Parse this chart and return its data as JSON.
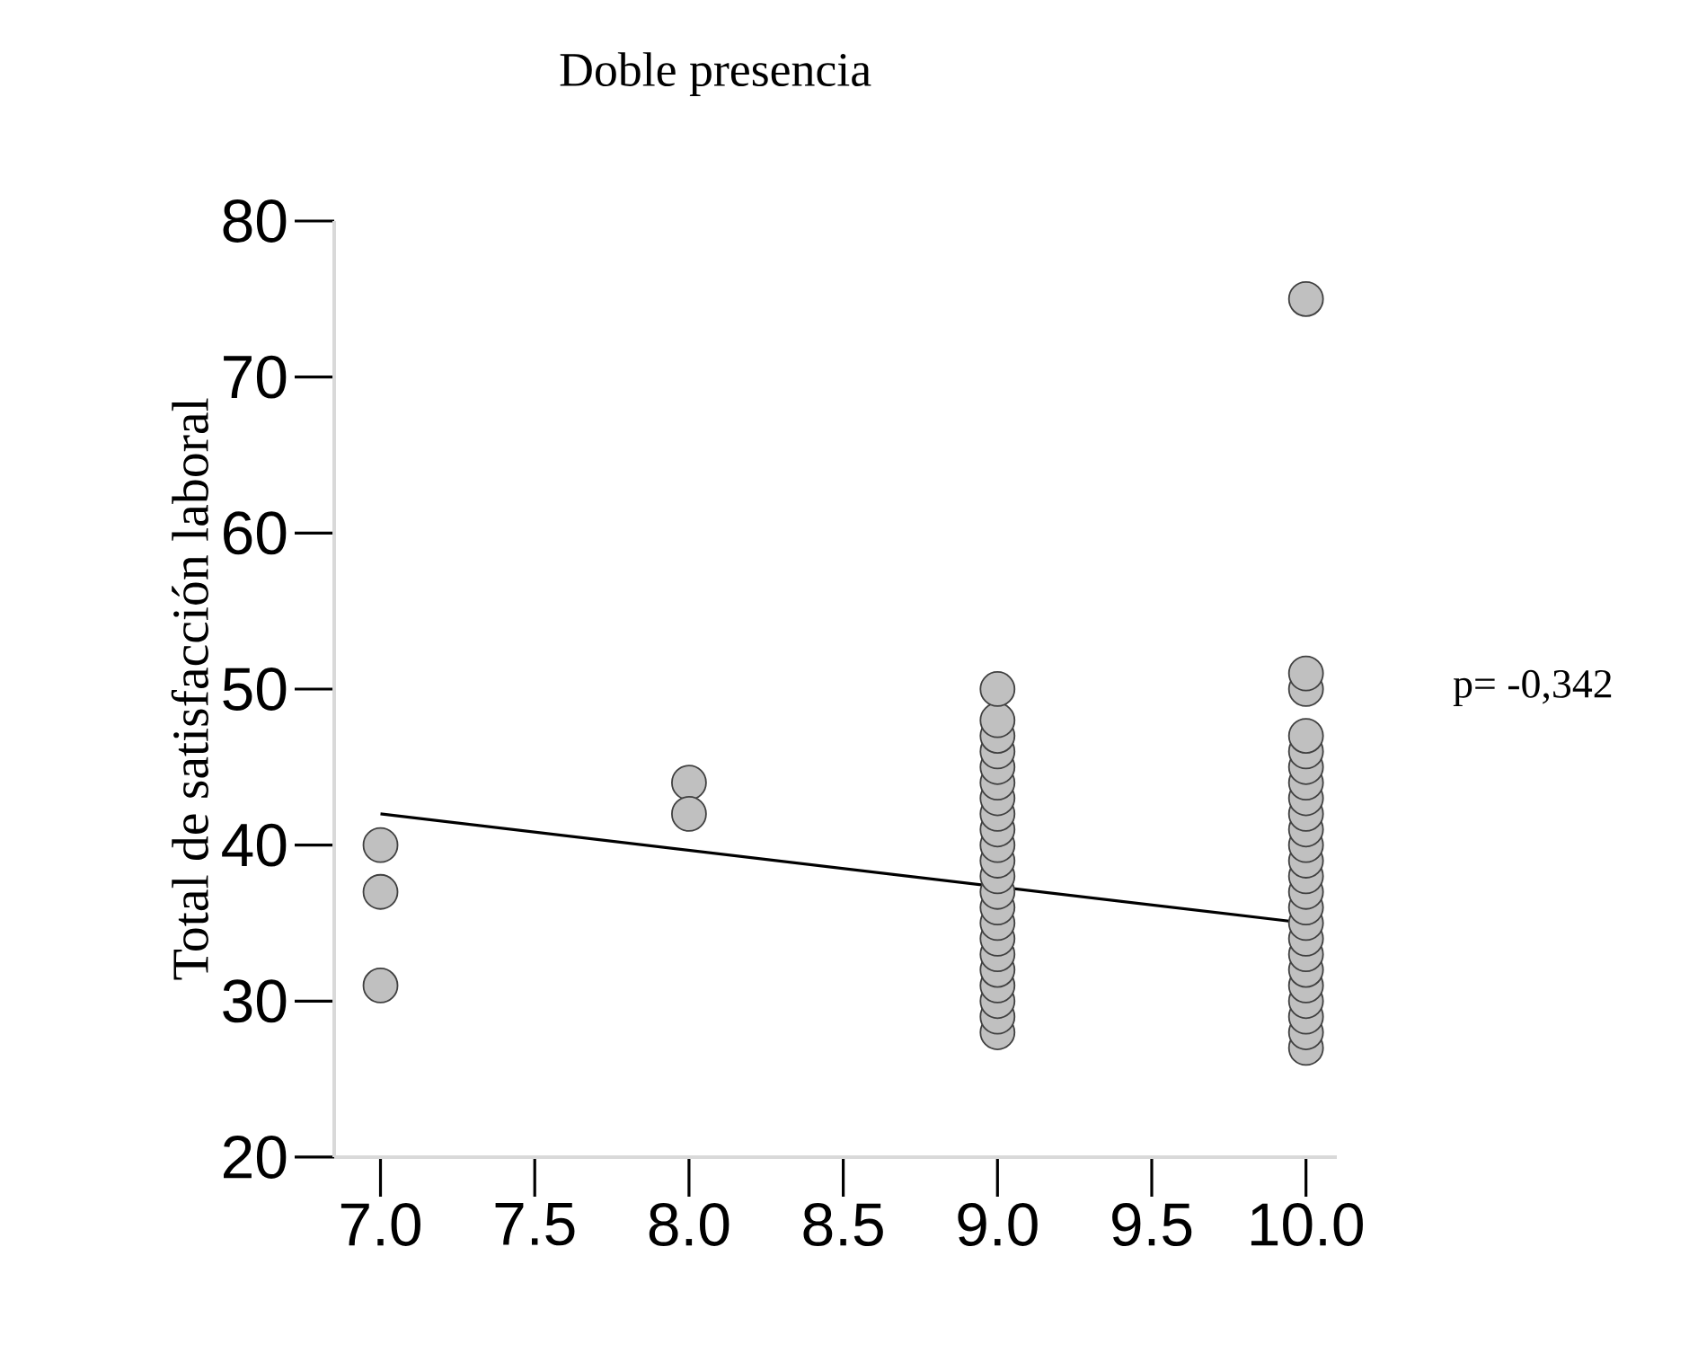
{
  "chart_data": {
    "type": "scatter",
    "title": "Doble presencia",
    "ylabel": "Total de satisfacción laboral",
    "xlim": [
      6.85,
      10.1
    ],
    "ylim": [
      20,
      80
    ],
    "xticks": [
      {
        "value": 7,
        "label": "7.0"
      },
      {
        "value": 7.5,
        "label": "7.5"
      },
      {
        "value": 8,
        "label": "8.0"
      },
      {
        "value": 8.5,
        "label": "8.5"
      },
      {
        "value": 9,
        "label": "9.0"
      },
      {
        "value": 9.5,
        "label": "9.5"
      },
      {
        "value": 10,
        "label": "10.0"
      }
    ],
    "yticks": [
      20,
      30,
      40,
      50,
      60,
      70,
      80
    ],
    "annotations": [
      "p= -0,342"
    ],
    "series": [
      {
        "color": "#c0c0c0",
        "marker": "circle",
        "x": [
          7,
          7,
          7,
          8,
          8,
          9,
          9,
          9,
          9,
          9,
          9,
          9,
          9,
          9,
          9,
          9,
          9,
          9,
          9,
          9,
          9,
          9,
          9,
          9,
          9,
          9,
          9,
          10,
          10,
          10,
          10,
          10,
          10,
          10,
          10,
          10,
          10,
          10,
          10,
          10,
          10,
          10,
          10,
          10,
          10,
          10,
          10,
          10,
          10,
          10,
          10
        ],
        "values": [
          40,
          37,
          31,
          44,
          42,
          28,
          29,
          30,
          31,
          32,
          33,
          34,
          35,
          36,
          37,
          38,
          39,
          40,
          41,
          42,
          43,
          44,
          45,
          46,
          47,
          48,
          50,
          27,
          28,
          29,
          30,
          31,
          32,
          33,
          34,
          35,
          36,
          37,
          38,
          39,
          40,
          41,
          42,
          43,
          44,
          45,
          46,
          47,
          50,
          51,
          75
        ]
      },
      {
        "type": "line",
        "color": "#000000",
        "marker": "none",
        "x": [
          7,
          10
        ],
        "values": [
          42,
          35
        ]
      }
    ]
  }
}
